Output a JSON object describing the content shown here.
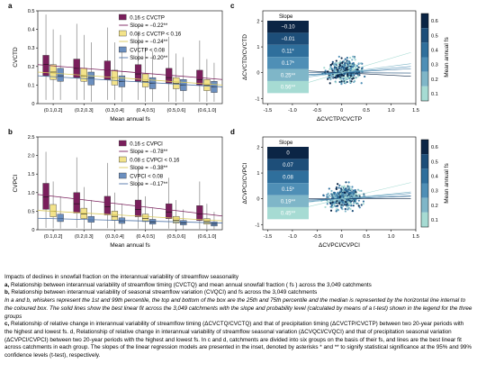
{
  "chart_data": [
    {
      "panel": "a",
      "type": "box",
      "xlabel": "Mean annual fs",
      "ylabel": "CVCTD",
      "ylim": [
        0,
        0.5
      ],
      "yticks": [
        "0",
        "0.1",
        "0.2",
        "0.3",
        "0.4",
        "0.5"
      ],
      "categories": [
        "(0.1,0.2]",
        "(0.2,0.3]",
        "(0.3,0.4]",
        "(0.4,0.5]",
        "(0.5,0.6]",
        "(0.6,1.0]"
      ],
      "legend": [
        "0.16 ≤ CVCTP",
        "Slope = −0.22**",
        "0.08 ≤ CVCTP < 0.16",
        "Slope = −0.24**",
        "CVCTP < 0.08",
        "Slope = −0.20**"
      ],
      "series": [
        {
          "color": "#7a1f5c",
          "boxes": [
            [
              0.02,
              0.15,
              0.21,
              0.26,
              0.48
            ],
            [
              0.02,
              0.14,
              0.19,
              0.24,
              0.43
            ],
            [
              0.02,
              0.13,
              0.18,
              0.23,
              0.41
            ],
            [
              0.02,
              0.12,
              0.16,
              0.21,
              0.38
            ],
            [
              0.01,
              0.11,
              0.14,
              0.19,
              0.36
            ],
            [
              0.01,
              0.1,
              0.13,
              0.18,
              0.34
            ]
          ]
        },
        {
          "color": "#f3e38a",
          "boxes": [
            [
              0.02,
              0.13,
              0.17,
              0.21,
              0.4
            ],
            [
              0.02,
              0.12,
              0.15,
              0.19,
              0.37
            ],
            [
              0.02,
              0.1,
              0.14,
              0.18,
              0.33
            ],
            [
              0.01,
              0.09,
              0.12,
              0.16,
              0.3
            ],
            [
              0.01,
              0.08,
              0.11,
              0.14,
              0.27
            ],
            [
              0.01,
              0.07,
              0.1,
              0.13,
              0.24
            ]
          ]
        },
        {
          "color": "#6b8fbf",
          "boxes": [
            [
              0.02,
              0.12,
              0.15,
              0.19,
              0.37
            ],
            [
              0.01,
              0.1,
              0.14,
              0.17,
              0.33
            ],
            [
              0.01,
              0.09,
              0.12,
              0.15,
              0.3
            ],
            [
              0.01,
              0.08,
              0.11,
              0.14,
              0.28
            ],
            [
              0.01,
              0.07,
              0.1,
              0.13,
              0.25
            ],
            [
              0.01,
              0.06,
              0.09,
              0.12,
              0.22
            ]
          ]
        }
      ],
      "fit_lines": [
        {
          "color": "#7a1f5c",
          "y": [
            0.21,
            0.13
          ]
        },
        {
          "color": "#d8c85a",
          "y": [
            0.17,
            0.1
          ]
        },
        {
          "color": "#4f74a8",
          "y": [
            0.15,
            0.09
          ]
        }
      ]
    },
    {
      "panel": "b",
      "type": "box",
      "xlabel": "Mean annual fs",
      "ylabel": "CVPCI",
      "ylim": [
        0,
        2.5
      ],
      "yticks": [
        "0",
        "0.5",
        "1.0",
        "1.5",
        "2.0",
        "2.5"
      ],
      "categories": [
        "(0.1,0.2]",
        "(0.2,0.3]",
        "(0.3,0.4]",
        "(0.4,0.5]",
        "(0.5,0.6]",
        "(0.6,1.0]"
      ],
      "legend": [
        "0.16 ≤ CVPCI",
        "Slope = −0.78**",
        "0.08 ≤ CVPCI < 0.16",
        "Slope = −0.38**",
        "CVPCI < 0.08",
        "Slope = −0.17**"
      ],
      "series": [
        {
          "color": "#7a1f5c",
          "boxes": [
            [
              0.05,
              0.55,
              0.88,
              1.25,
              2.1
            ],
            [
              0.05,
              0.45,
              0.7,
              1.0,
              1.95
            ],
            [
              0.04,
              0.4,
              0.62,
              0.9,
              1.8
            ],
            [
              0.03,
              0.35,
              0.55,
              0.8,
              1.6
            ],
            [
              0.03,
              0.3,
              0.48,
              0.7,
              1.4
            ],
            [
              0.02,
              0.25,
              0.42,
              0.65,
              1.3
            ]
          ]
        },
        {
          "color": "#f3e38a",
          "boxes": [
            [
              0.04,
              0.35,
              0.5,
              0.68,
              1.3
            ],
            [
              0.03,
              0.3,
              0.42,
              0.58,
              1.15
            ],
            [
              0.03,
              0.25,
              0.36,
              0.5,
              1.0
            ],
            [
              0.02,
              0.22,
              0.3,
              0.42,
              0.9
            ],
            [
              0.02,
              0.18,
              0.26,
              0.36,
              0.8
            ],
            [
              0.02,
              0.15,
              0.22,
              0.3,
              0.7
            ]
          ]
        },
        {
          "color": "#6b8fbf",
          "boxes": [
            [
              0.03,
              0.22,
              0.3,
              0.42,
              0.9
            ],
            [
              0.02,
              0.2,
              0.27,
              0.36,
              0.8
            ],
            [
              0.02,
              0.17,
              0.24,
              0.32,
              0.7
            ],
            [
              0.02,
              0.15,
              0.21,
              0.28,
              0.6
            ],
            [
              0.01,
              0.13,
              0.18,
              0.25,
              0.55
            ],
            [
              0.01,
              0.1,
              0.15,
              0.21,
              0.48
            ]
          ]
        }
      ],
      "fit_lines": [
        {
          "color": "#7a1f5c",
          "y": [
            0.95,
            0.37
          ]
        },
        {
          "color": "#d8c85a",
          "y": [
            0.52,
            0.24
          ]
        },
        {
          "color": "#4f74a8",
          "y": [
            0.31,
            0.18
          ]
        }
      ]
    },
    {
      "panel": "c",
      "type": "scatter",
      "xlabel": "ΔCVCTP/CVCTP",
      "ylabel": "ΔCVCTD/CVCTD",
      "xlim": [
        -1.6,
        1.5
      ],
      "ylim": [
        -1.2,
        2.4
      ],
      "xticks": [
        "-1.5",
        "-1.0",
        "-0.5",
        "0",
        "0.5",
        "1.0",
        "1.5"
      ],
      "yticks": [
        "-1",
        "0",
        "1",
        "2"
      ],
      "slope_title": "Slope",
      "slopes": [
        "−0.10",
        "−0.01",
        "0.11*",
        "0.17*",
        "0.25**",
        "0.56**"
      ],
      "slope_colors": [
        "#0b2545",
        "#1d4e79",
        "#2f6f9c",
        "#4f8fb6",
        "#7fb6c8",
        "#a6dbd3"
      ],
      "colorbar_label": "Mean annual fs",
      "colorbar_ticks": [
        "0.1",
        "0.2",
        "0.3",
        "0.4",
        "0.5",
        "0.6"
      ]
    },
    {
      "panel": "d",
      "type": "scatter",
      "xlabel": "ΔCVPCI/CVPCI",
      "ylabel": "ΔCVPCI/CVPCI",
      "xlim": [
        -1.6,
        1.5
      ],
      "ylim": [
        -1.2,
        2.4
      ],
      "xticks": [
        "-1.5",
        "-1.0",
        "-0.5",
        "0",
        "0.5",
        "1.0",
        "1.5"
      ],
      "yticks": [
        "-1",
        "0",
        "1",
        "2"
      ],
      "slope_title": "Slope",
      "slopes": [
        "0",
        "0.07",
        "0.08",
        "0.15*",
        "0.19**",
        "0.45**"
      ],
      "slope_colors": [
        "#0b2545",
        "#1d4e79",
        "#2f6f9c",
        "#4f8fb6",
        "#7fb6c8",
        "#a6dbd3"
      ],
      "colorbar_label": "Mean annual fs",
      "colorbar_ticks": [
        "0.1",
        "0.2",
        "0.3",
        "0.4",
        "0.5",
        "0.6"
      ]
    }
  ],
  "caption": {
    "title": "Impacts of declines in snowfall fraction on the interannual variability of streamflow seasonality",
    "a_label": "a,",
    "a_text": " Relationship between interannual variability of streamflow timing (CVCTQ) and mean annual snowfall fraction ( fs ) across the 3,049 catchments",
    "b_label": "b,",
    "b_text": " Relationship between interannual variability of seasonal streamflow variation (CVQCI) and  fs across the 3,049 catchments",
    "italic": "In a and b, whiskers represent the 1st and 99th percentile, the top and bottom of the box are the 25th and 75th percentile and the median is represented by the horizontal line internal to the coloured box. The solid lines show the best linear fit across the 3,049 catchments with the slope and probability level (calculated by means of a t-test) shown in the legend for the three groups",
    "c_label": "c,",
    "c_text": " Relationship of relative change in interannual variability of streamflow timing (ΔCVCTQ/CVCTQ) and that of precipitation timing (ΔCVCTP/CVCTP) between two 20-year periods with the highest and lowest fs. d, Relationship of relative change in interannual variability of streamflow seasonal variation (ΔCVQCI/CVQCI) and that of precipitation seasonal variation (ΔCVPCI/CVPCI) between two 20-year periods with the highest and lowest fs. In c and d, catchments are divided into six groups on the basis of their  fs, and lines are the best linear fit across catchments in each group. The slopes of the linear regression models are presented in the inset, denoted by asterisks * and ** to signify statistical significance at the 95% and 99% confidence levels (t-test), respectively."
  }
}
